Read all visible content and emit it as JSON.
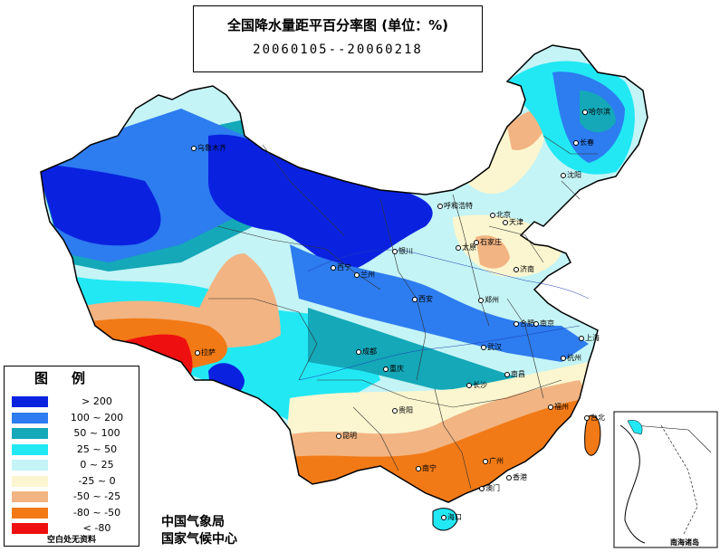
{
  "title": {
    "main": "全国降水量距平百分率图 (单位：%)",
    "dates": "20060105--20060218"
  },
  "legend": {
    "title": "图例",
    "items": [
      {
        "label": "> 200",
        "color": "#0a22e0"
      },
      {
        "label": "100 ~ 200",
        "color": "#2d7cf0"
      },
      {
        "label": "50 ~ 100",
        "color": "#14a8b8"
      },
      {
        "label": "25 ~ 50",
        "color": "#22e8f4"
      },
      {
        "label": "0 ~ 25",
        "color": "#c4f4f6"
      },
      {
        "label": "-25 ~ 0",
        "color": "#fbf6cf"
      },
      {
        "label": "-50 ~ -25",
        "color": "#f2b482"
      },
      {
        "label": "-80 ~ -50",
        "color": "#f27a16"
      },
      {
        "label": "< -80",
        "color": "#ee1010"
      }
    ],
    "note": "空白处无资料"
  },
  "organization": {
    "line1": "中国气象局",
    "line2": "国家气候中心"
  },
  "inset": {
    "label": "南海诸岛"
  },
  "cities": [
    {
      "name": "乌鲁木齐"
    },
    {
      "name": "哈尔滨"
    },
    {
      "name": "长春"
    },
    {
      "name": "沈阳"
    },
    {
      "name": "呼和浩特"
    },
    {
      "name": "北京"
    },
    {
      "name": "天津"
    },
    {
      "name": "太原"
    },
    {
      "name": "石家庄"
    },
    {
      "name": "济南"
    },
    {
      "name": "银川"
    },
    {
      "name": "西宁"
    },
    {
      "name": "兰州"
    },
    {
      "name": "西安"
    },
    {
      "name": "郑州"
    },
    {
      "name": "合肥"
    },
    {
      "name": "南京"
    },
    {
      "name": "上海"
    },
    {
      "name": "武汉"
    },
    {
      "name": "杭州"
    },
    {
      "name": "成都"
    },
    {
      "name": "重庆"
    },
    {
      "name": "拉萨"
    },
    {
      "name": "长沙"
    },
    {
      "name": "南昌"
    },
    {
      "name": "福州"
    },
    {
      "name": "贵阳"
    },
    {
      "name": "昆明"
    },
    {
      "name": "南宁"
    },
    {
      "name": "广州"
    },
    {
      "name": "香港"
    },
    {
      "name": "澳门"
    },
    {
      "name": "台北"
    },
    {
      "name": "海口"
    }
  ]
}
